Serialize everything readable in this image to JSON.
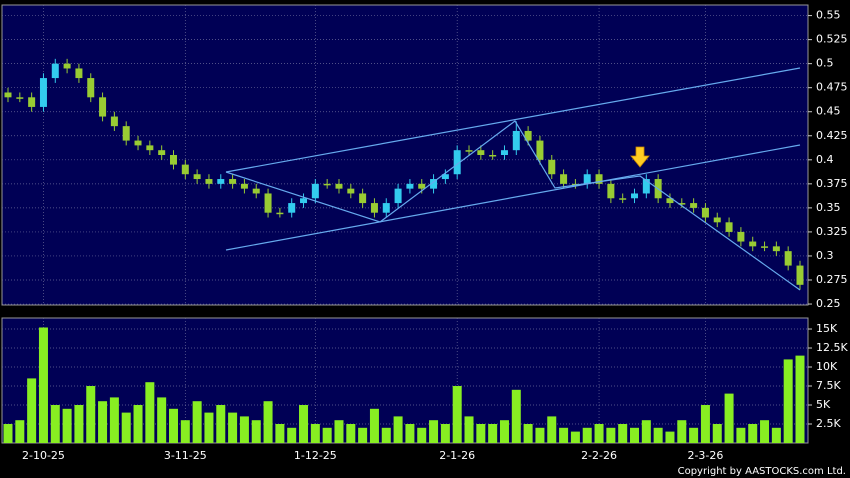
{
  "chart_data": [
    {
      "type": "candlestick",
      "categories": [
        null,
        null,
        null,
        "2-10-25",
        null,
        null,
        null,
        null,
        null,
        null,
        null,
        null,
        null,
        null,
        null,
        "3-11-25",
        null,
        null,
        null,
        null,
        null,
        null,
        null,
        null,
        null,
        null,
        "1-12-25",
        null,
        null,
        null,
        null,
        null,
        null,
        null,
        null,
        null,
        null,
        null,
        "2-1-26",
        null,
        null,
        null,
        null,
        null,
        null,
        null,
        null,
        null,
        null,
        null,
        "2-2-26",
        null,
        null,
        null,
        null,
        null,
        null,
        null,
        null,
        "2-3-26",
        null,
        null,
        null,
        null,
        null,
        null,
        null,
        null
      ],
      "open": [
        0.47,
        0.465,
        0.465,
        0.455,
        0.485,
        0.5,
        0.495,
        0.485,
        0.465,
        0.445,
        0.435,
        0.42,
        0.415,
        0.41,
        0.405,
        0.395,
        0.385,
        0.38,
        0.375,
        0.38,
        0.375,
        0.37,
        0.365,
        0.345,
        0.345,
        0.355,
        0.36,
        0.375,
        0.375,
        0.37,
        0.365,
        0.355,
        0.345,
        0.355,
        0.37,
        0.375,
        0.37,
        0.38,
        0.385,
        0.41,
        0.41,
        0.405,
        0.405,
        0.41,
        0.43,
        0.42,
        0.4,
        0.385,
        0.375,
        0.375,
        0.385,
        0.375,
        0.36,
        0.36,
        0.365,
        0.38,
        0.36,
        0.355,
        0.355,
        0.35,
        0.34,
        0.335,
        0.325,
        0.315,
        0.31,
        0.31,
        0.305,
        0.29
      ],
      "high": [
        0.475,
        0.47,
        0.47,
        0.49,
        0.505,
        0.505,
        0.5,
        0.49,
        0.47,
        0.45,
        0.44,
        0.425,
        0.42,
        0.415,
        0.41,
        0.4,
        0.39,
        0.385,
        0.385,
        0.385,
        0.38,
        0.375,
        0.37,
        0.35,
        0.36,
        0.365,
        0.38,
        0.38,
        0.38,
        0.375,
        0.37,
        0.36,
        0.36,
        0.375,
        0.38,
        0.38,
        0.385,
        0.39,
        0.415,
        0.415,
        0.415,
        0.41,
        0.415,
        0.44,
        0.435,
        0.425,
        0.405,
        0.39,
        0.38,
        0.39,
        0.39,
        0.38,
        0.365,
        0.37,
        0.385,
        0.385,
        0.365,
        0.36,
        0.36,
        0.355,
        0.345,
        0.34,
        0.33,
        0.32,
        0.315,
        0.315,
        0.31,
        0.295
      ],
      "low": [
        0.46,
        0.46,
        0.45,
        0.45,
        0.48,
        0.49,
        0.48,
        0.46,
        0.44,
        0.43,
        0.415,
        0.41,
        0.405,
        0.4,
        0.39,
        0.38,
        0.375,
        0.37,
        0.37,
        0.37,
        0.365,
        0.36,
        0.34,
        0.34,
        0.34,
        0.35,
        0.355,
        0.37,
        0.365,
        0.36,
        0.35,
        0.34,
        0.34,
        0.35,
        0.365,
        0.365,
        0.365,
        0.375,
        0.38,
        0.405,
        0.4,
        0.4,
        0.4,
        0.405,
        0.415,
        0.395,
        0.38,
        0.37,
        0.37,
        0.37,
        0.37,
        0.355,
        0.355,
        0.355,
        0.36,
        0.355,
        0.35,
        0.35,
        0.345,
        0.335,
        0.33,
        0.32,
        0.31,
        0.305,
        0.305,
        0.3,
        0.285,
        0.265
      ],
      "close": [
        0.465,
        0.465,
        0.455,
        0.485,
        0.5,
        0.495,
        0.485,
        0.465,
        0.445,
        0.435,
        0.42,
        0.415,
        0.41,
        0.405,
        0.395,
        0.385,
        0.38,
        0.375,
        0.38,
        0.375,
        0.37,
        0.365,
        0.345,
        0.345,
        0.355,
        0.36,
        0.375,
        0.375,
        0.37,
        0.365,
        0.355,
        0.345,
        0.355,
        0.37,
        0.375,
        0.37,
        0.38,
        0.385,
        0.41,
        0.41,
        0.405,
        0.405,
        0.41,
        0.43,
        0.42,
        0.4,
        0.385,
        0.375,
        0.375,
        0.385,
        0.375,
        0.36,
        0.36,
        0.365,
        0.38,
        0.36,
        0.355,
        0.355,
        0.35,
        0.34,
        0.335,
        0.325,
        0.315,
        0.31,
        0.31,
        0.305,
        0.29,
        0.27
      ],
      "up_color": "#33ccee",
      "down_color": "#99cc33",
      "ylim": [
        0.249,
        0.561
      ],
      "yticks": [
        0.25,
        0.275,
        0.3,
        0.325,
        0.35,
        0.375,
        0.4,
        0.425,
        0.45,
        0.475,
        0.5,
        0.525,
        0.55
      ],
      "grid": true
    },
    {
      "type": "bar",
      "values": [
        2500,
        3000,
        8500,
        15200,
        5000,
        4500,
        5000,
        7500,
        5500,
        6000,
        4000,
        5000,
        8000,
        6000,
        4500,
        3000,
        5500,
        4000,
        5000,
        4000,
        3500,
        3000,
        5500,
        2500,
        2000,
        5000,
        2500,
        2000,
        3000,
        2500,
        2000,
        4500,
        2000,
        3500,
        2500,
        2000,
        3000,
        2500,
        7500,
        3500,
        2500,
        2500,
        3000,
        7000,
        2500,
        2000,
        3500,
        2000,
        1500,
        2000,
        2500,
        2000,
        2500,
        2000,
        3000,
        2000,
        1500,
        3000,
        2000,
        5000,
        2500,
        6500,
        2000,
        2500,
        3000,
        2000,
        11000,
        11500
      ],
      "color": "#88ee22",
      "ylim": [
        0,
        16450
      ],
      "yticks": [
        {
          "value": 2500,
          "label": "2.5K"
        },
        {
          "value": 5000,
          "label": "5K"
        },
        {
          "value": 7500,
          "label": "7.5K"
        },
        {
          "value": 10000,
          "label": "10K"
        },
        {
          "value": 12500,
          "label": "12.5K"
        },
        {
          "value": 15000,
          "label": "15K"
        }
      ],
      "grid": true
    }
  ],
  "copyright": "Copyright by AASTOCKS.com Ltd."
}
